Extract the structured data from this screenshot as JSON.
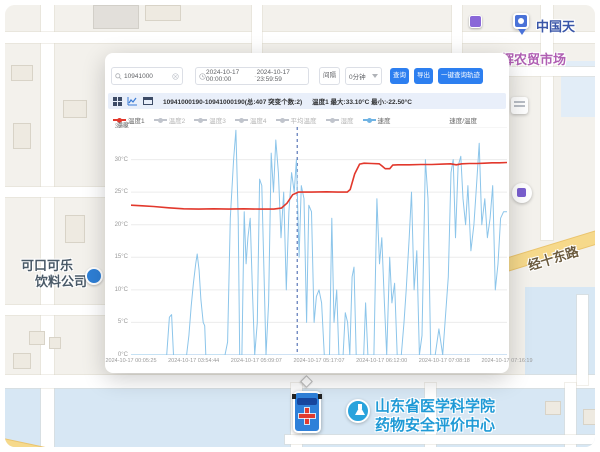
{
  "map": {
    "poi": {
      "pin_label": "中国天",
      "market_label": "辉农贸市场",
      "company_line1": "可口可乐",
      "company_line2": "饮料公司",
      "road_label": "经十东路",
      "institute_line1": "山东省医学科学院",
      "institute_line2": "药物安全评价中心"
    },
    "colors": {
      "land": "#f3f1ec",
      "campus_blue": "#d7e7f4",
      "road_yellow": "#f6d98b",
      "poi_blue": "#1f9ad6",
      "poi_purple": "#b05fb3"
    }
  },
  "panel": {
    "search": {
      "value": "10941000"
    },
    "date_range": {
      "start": "2024-10-17 00:00:00",
      "separator": "-",
      "end": "2024-10-17 23:59:59"
    },
    "interval_label": "间隔",
    "interval_value": "0分钟",
    "buttons": {
      "query": "查询",
      "export": "导出",
      "track": "一键查询轨迹"
    },
    "summary": {
      "device": "10941000190-10941000190(总:407 突变个数:2)",
      "stats": "温度1 最大:33.10°C 最小:-22.50°C"
    },
    "icons": {
      "view_grid": "grid-icon",
      "view_chart": "line-chart-icon",
      "view_table": "calendar-icon",
      "search": "magnifier-icon",
      "clear": "circle-close-icon",
      "clock": "clock-icon",
      "chevron": "chevron-down-icon"
    },
    "accent_color": "#2d7ff0"
  },
  "chart_data": {
    "type": "line",
    "title": "",
    "y_axis": {
      "name": "温度",
      "min": 0,
      "max": 35,
      "ticks": [
        "35°C",
        "30°C",
        "25°C",
        "20°C",
        "15°C",
        "10°C",
        "5°C",
        "0°C"
      ]
    },
    "secondary_label": "速度/温度",
    "x_labels": [
      "2024-10-17 00:05:25",
      "2024-10-17 03:54:44",
      "2024-10-17 05:09:07",
      "2024-10-17 05:17:07",
      "2024-10-17 06:12:00",
      "2024-10-17 07:08:18",
      "2024-10-17 07:16:19"
    ],
    "legend": [
      {
        "label": "温度1",
        "color": "#e2382c",
        "active": true
      },
      {
        "label": "温度2",
        "color": "#c0c4cc",
        "active": false
      },
      {
        "label": "温度3",
        "color": "#c0c4cc",
        "active": false
      },
      {
        "label": "温度4",
        "color": "#c0c4cc",
        "active": false
      },
      {
        "label": "平均温度",
        "color": "#c0c4cc",
        "active": false
      },
      {
        "label": "湿度",
        "color": "#c0c4cc",
        "active": false
      },
      {
        "label": "速度",
        "color": "#6fb3e3",
        "active": true
      }
    ],
    "marker_line_pct": 44.2,
    "grid": true,
    "series": [
      {
        "name": "速度",
        "color": "#8cc5ea",
        "width": 1,
        "points": [
          [
            0,
            0
          ],
          [
            9.5,
            0
          ],
          [
            10.2,
            5.8
          ],
          [
            10.8,
            6.2
          ],
          [
            11.3,
            0
          ],
          [
            14.8,
            0
          ],
          [
            15.4,
            3
          ],
          [
            16,
            7.5
          ],
          [
            16.6,
            11
          ],
          [
            17.2,
            14
          ],
          [
            17.6,
            15.5
          ],
          [
            18.1,
            13
          ],
          [
            18.6,
            8.5
          ],
          [
            19.2,
            5
          ],
          [
            19.6,
            4.5
          ],
          [
            19.9,
            0
          ],
          [
            25,
            0
          ],
          [
            25.7,
            2
          ],
          [
            26.4,
            21
          ],
          [
            27.3,
            30
          ],
          [
            27.9,
            34.5
          ],
          [
            28.5,
            21
          ],
          [
            28.9,
            0
          ],
          [
            29.5,
            0
          ],
          [
            30.1,
            22
          ],
          [
            30.6,
            14
          ],
          [
            31.1,
            18
          ],
          [
            31.7,
            21
          ],
          [
            32.3,
            10
          ],
          [
            32.9,
            0
          ],
          [
            33.6,
            5
          ],
          [
            34.2,
            27
          ],
          [
            34.8,
            26
          ],
          [
            35.4,
            12
          ],
          [
            35.9,
            0
          ],
          [
            36.6,
            8
          ],
          [
            37.3,
            31
          ],
          [
            37.9,
            25
          ],
          [
            38.5,
            33
          ],
          [
            39.2,
            28
          ],
          [
            39.9,
            18
          ],
          [
            40.6,
            25
          ],
          [
            41.3,
            10
          ],
          [
            42,
            22
          ],
          [
            42.7,
            28
          ],
          [
            43.4,
            25
          ],
          [
            44,
            30
          ],
          [
            44.7,
            15
          ],
          [
            45.3,
            26
          ],
          [
            46,
            24
          ],
          [
            46.7,
            5
          ],
          [
            47.3,
            23
          ],
          [
            48,
            22
          ],
          [
            48.7,
            5
          ],
          [
            49.3,
            9
          ],
          [
            50,
            10
          ],
          [
            50.7,
            8
          ],
          [
            51.4,
            0
          ],
          [
            52.8,
            0
          ],
          [
            53.4,
            21
          ],
          [
            54,
            5
          ],
          [
            54.7,
            10
          ],
          [
            55.3,
            0
          ],
          [
            56.4,
            0
          ],
          [
            57,
            6.5
          ],
          [
            57.6,
            5
          ],
          [
            58.2,
            0
          ],
          [
            58.8,
            12
          ],
          [
            59.3,
            13.5
          ],
          [
            59.9,
            0
          ],
          [
            61.9,
            0
          ],
          [
            62.4,
            8
          ],
          [
            63,
            0
          ],
          [
            64.6,
            0
          ],
          [
            65.4,
            24
          ],
          [
            66.1,
            14
          ],
          [
            66.7,
            18
          ],
          [
            67.4,
            8
          ],
          [
            68,
            0
          ],
          [
            68.8,
            15
          ],
          [
            69.4,
            8
          ],
          [
            70.1,
            11
          ],
          [
            70.8,
            0
          ],
          [
            71.9,
            0
          ],
          [
            72.6,
            5
          ],
          [
            73.2,
            10
          ],
          [
            74,
            18
          ],
          [
            74.6,
            25
          ],
          [
            75.3,
            10
          ],
          [
            76,
            16
          ],
          [
            76.7,
            0
          ],
          [
            77.4,
            3
          ],
          [
            78.3,
            30
          ],
          [
            79,
            24
          ],
          [
            79.7,
            0
          ],
          [
            80.9,
            0
          ],
          [
            81.9,
            4
          ],
          [
            82.9,
            0
          ],
          [
            84.4,
            12
          ],
          [
            85.1,
            28
          ],
          [
            85.7,
            30
          ],
          [
            86.3,
            18
          ],
          [
            87,
            29
          ],
          [
            87.7,
            30.5
          ],
          [
            88.3,
            24
          ],
          [
            89,
            20
          ],
          [
            89.6,
            26
          ],
          [
            90.4,
            16
          ],
          [
            91.2,
            20
          ],
          [
            91.9,
            26
          ],
          [
            92.6,
            32.5
          ],
          [
            93.3,
            20
          ],
          [
            94.1,
            24
          ],
          [
            94.8,
            18
          ],
          [
            95.5,
            21
          ],
          [
            96.2,
            26
          ],
          [
            96.9,
            10
          ],
          [
            97.6,
            14
          ],
          [
            98.3,
            21
          ],
          [
            99.1,
            22
          ],
          [
            100,
            22
          ]
        ]
      },
      {
        "name": "温度1",
        "color": "#e2382c",
        "width": 1.6,
        "points": [
          [
            0,
            23
          ],
          [
            3,
            22.9
          ],
          [
            6,
            22.8
          ],
          [
            10,
            22.6
          ],
          [
            14,
            22.45
          ],
          [
            18,
            22.4
          ],
          [
            22,
            22.45
          ],
          [
            26,
            22.4
          ],
          [
            30,
            22.45
          ],
          [
            34,
            22.4
          ],
          [
            38,
            22.4
          ],
          [
            40,
            22.55
          ],
          [
            41.5,
            23.3
          ],
          [
            43,
            24.6
          ],
          [
            44.5,
            25
          ],
          [
            48,
            25
          ],
          [
            52,
            25.05
          ],
          [
            55,
            25
          ],
          [
            57.5,
            25
          ],
          [
            58.3,
            25.4
          ],
          [
            59.5,
            27.8
          ],
          [
            60.8,
            29.3
          ],
          [
            62,
            29.45
          ],
          [
            64,
            29.4
          ],
          [
            66,
            29.35
          ],
          [
            66.8,
            29
          ],
          [
            67.6,
            28.6
          ],
          [
            68.8,
            28.6
          ],
          [
            69.6,
            29.15
          ],
          [
            71,
            29.2
          ],
          [
            74,
            29.2
          ],
          [
            77,
            29.25
          ],
          [
            80,
            29.25
          ],
          [
            83,
            29.3
          ],
          [
            85,
            29.35
          ],
          [
            86.5,
            29.2
          ],
          [
            88,
            29.35
          ],
          [
            90,
            29.4
          ],
          [
            92,
            29.4
          ],
          [
            94,
            29.45
          ],
          [
            96,
            29.5
          ],
          [
            98,
            29.5
          ],
          [
            100,
            29.55
          ]
        ]
      }
    ]
  }
}
